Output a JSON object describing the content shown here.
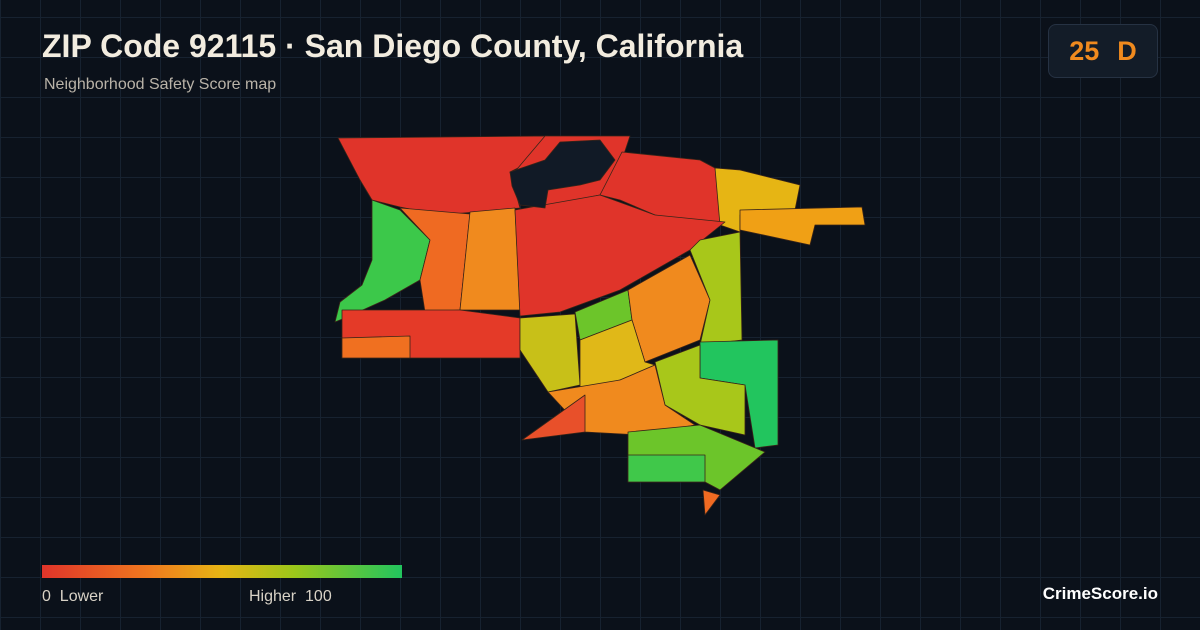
{
  "header": {
    "title": "ZIP Code 92115 · San Diego County, California",
    "subtitle": "Neighborhood Safety Score map"
  },
  "score": {
    "value": 25,
    "grade": "D"
  },
  "legend": {
    "min": 0,
    "min_label": "Lower",
    "max_label": "Higher",
    "max": 100
  },
  "brand": "CrimeScore.io"
}
